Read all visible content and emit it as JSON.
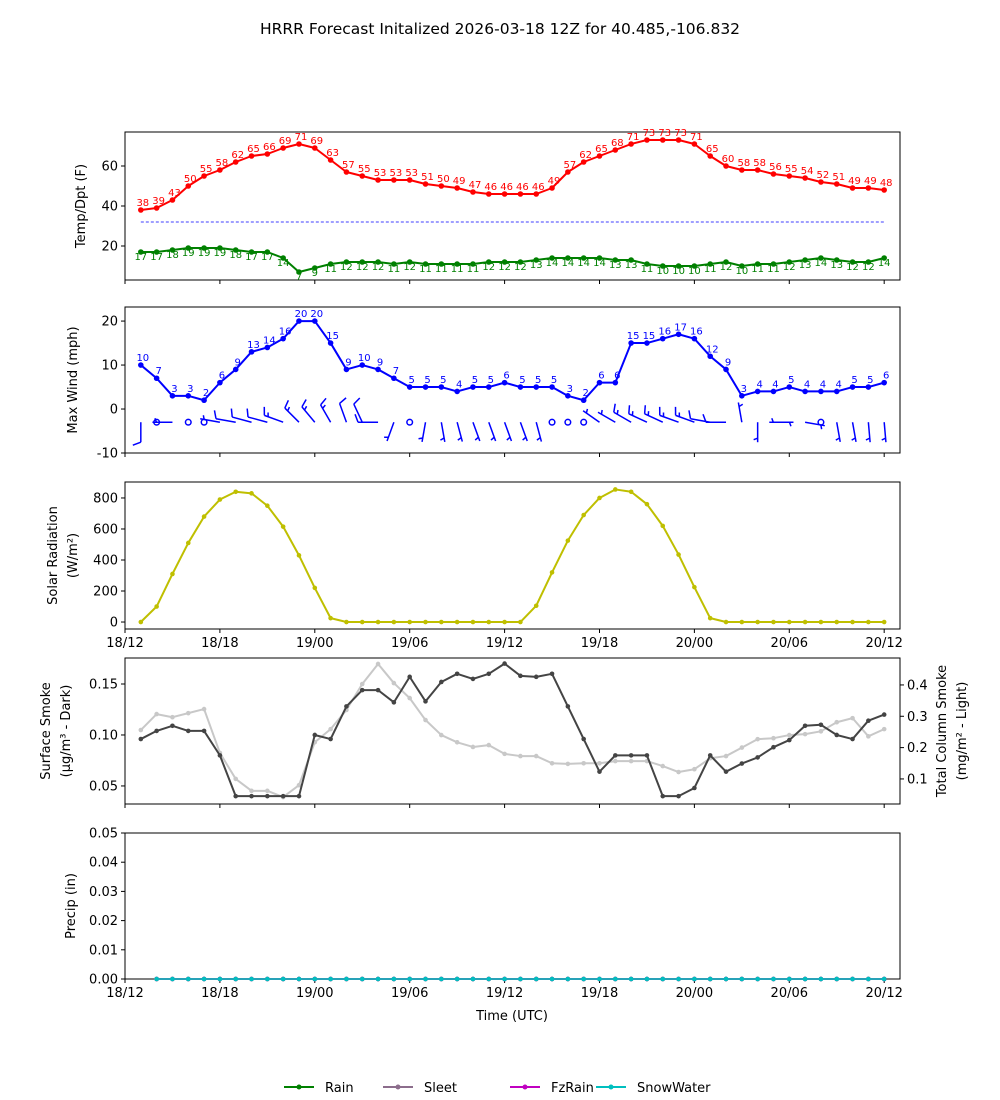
{
  "title": "HRRR Forecast Initalized 2026-03-18 12Z for 40.485,-106.832",
  "xlabel": "Time (UTC)",
  "x_ticks": {
    "hours": [
      0,
      6,
      12,
      18,
      24,
      30,
      36,
      42,
      48
    ],
    "labels": [
      "18/12",
      "18/18",
      "19/00",
      "19/06",
      "19/12",
      "19/18",
      "20/00",
      "20/06",
      "20/12"
    ]
  },
  "chart_data": [
    {
      "type": "line",
      "ylabel": "Temp/Dpt (F)",
      "ylim": [
        3,
        77
      ],
      "yticks": [
        20,
        40,
        60
      ],
      "hours": [
        1,
        2,
        3,
        4,
        5,
        6,
        7,
        8,
        9,
        10,
        11,
        12,
        13,
        14,
        15,
        16,
        17,
        18,
        19,
        20,
        21,
        22,
        23,
        24,
        25,
        26,
        27,
        28,
        29,
        30,
        31,
        32,
        33,
        34,
        35,
        36,
        37,
        38,
        39,
        40,
        41,
        42,
        43,
        44,
        45,
        46,
        47,
        48
      ],
      "series": [
        {
          "name": "Temperature",
          "color": "#ff0000",
          "values": [
            38,
            39,
            43,
            50,
            55,
            58,
            62,
            65,
            66,
            69,
            71,
            69,
            63,
            57,
            55,
            53,
            53,
            53,
            51,
            50,
            49,
            47,
            46,
            46,
            46,
            46,
            49,
            57,
            62,
            65,
            68,
            71,
            73,
            73,
            73,
            71,
            65,
            60,
            58,
            58,
            56,
            55,
            54,
            52,
            51,
            49,
            49,
            48
          ]
        },
        {
          "name": "Dewpoint",
          "color": "#008000",
          "values": [
            17,
            17,
            18,
            19,
            19,
            19,
            18,
            17,
            17,
            14,
            7,
            9,
            11,
            12,
            12,
            12,
            11,
            12,
            11,
            11,
            11,
            11,
            12,
            12,
            12,
            13,
            14,
            14,
            14,
            14,
            13,
            13,
            11,
            10,
            10,
            10,
            11,
            12,
            10,
            11,
            11,
            12,
            13,
            14,
            13,
            12,
            12,
            14
          ]
        }
      ],
      "reference_line": {
        "value": 32,
        "color": "#0000ff",
        "style": "dashed"
      }
    },
    {
      "type": "line",
      "ylabel": "Max Wind (mph)",
      "ylim": [
        -10,
        23.2
      ],
      "yticks": [
        -10,
        0,
        10,
        20
      ],
      "hours": [
        1,
        2,
        3,
        4,
        5,
        6,
        7,
        8,
        9,
        10,
        11,
        12,
        13,
        14,
        15,
        16,
        17,
        18,
        19,
        20,
        21,
        22,
        23,
        24,
        25,
        26,
        27,
        28,
        29,
        30,
        31,
        32,
        33,
        34,
        35,
        36,
        37,
        38,
        39,
        40,
        41,
        42,
        43,
        44,
        45,
        46,
        47,
        48
      ],
      "series": [
        {
          "name": "Max Wind",
          "color": "#0000ff",
          "values": [
            10,
            7,
            3,
            3,
            2,
            6,
            9,
            13,
            14,
            16,
            20,
            20,
            15,
            9,
            10,
            9,
            7,
            5,
            5,
            5,
            4,
            5,
            5,
            6,
            5,
            5,
            5,
            3,
            2,
            6,
            6,
            15,
            15,
            16,
            17,
            16,
            12,
            9,
            3,
            4,
            4,
            5,
            4,
            4,
            4,
            5,
            5,
            6
          ]
        }
      ],
      "barbs": {
        "level": -3,
        "color": "#0000ff",
        "dir_deg": [
          180,
          null,
          270,
          null,
          null,
          280,
          280,
          285,
          285,
          290,
          315,
          320,
          330,
          340,
          335,
          270,
          200,
          null,
          190,
          170,
          165,
          160,
          160,
          160,
          160,
          165,
          null,
          null,
          null,
          305,
          300,
          300,
          295,
          295,
          290,
          290,
          280,
          270,
          350,
          180,
          90,
          270,
          100,
          null,
          170,
          170,
          175,
          175
        ]
      }
    },
    {
      "type": "line",
      "ylabel": [
        "Solar Radiation",
        "(W/m²)"
      ],
      "ylim": [
        -45,
        903
      ],
      "yticks": [
        0,
        200,
        400,
        600,
        800
      ],
      "hours": [
        1,
        2,
        3,
        4,
        5,
        6,
        7,
        8,
        9,
        10,
        11,
        12,
        13,
        14,
        15,
        16,
        17,
        18,
        19,
        20,
        21,
        22,
        23,
        24,
        25,
        26,
        27,
        28,
        29,
        30,
        31,
        32,
        33,
        34,
        35,
        36,
        37,
        38,
        39,
        40,
        41,
        42,
        43,
        44,
        45,
        46,
        47,
        48
      ],
      "series": [
        {
          "name": "Solar Radiation",
          "color": "#bfbf00",
          "values": [
            0,
            100,
            310,
            510,
            680,
            790,
            840,
            830,
            750,
            615,
            430,
            220,
            25,
            0,
            0,
            0,
            0,
            0,
            0,
            0,
            0,
            0,
            0,
            0,
            0,
            105,
            320,
            525,
            690,
            800,
            855,
            840,
            760,
            620,
            435,
            225,
            25,
            0,
            0,
            0,
            0,
            0,
            0,
            0,
            0,
            0,
            0,
            0
          ]
        }
      ]
    },
    {
      "type": "line",
      "ylabel": [
        "Surface Smoke",
        "(µg/m³ - Dark)"
      ],
      "ylabel_right": [
        "Total Column Smoke",
        "(mg/m² - Light)"
      ],
      "ylim": [
        0.0323,
        0.1755
      ],
      "ylim_right": [
        0.02,
        0.486
      ],
      "yticks": [
        0.05,
        0.1,
        0.15
      ],
      "ytick_labels": [
        "0.05",
        "0.10",
        "0.15"
      ],
      "yticks_right": [
        0.1,
        0.2,
        0.3,
        0.4
      ],
      "ytick_labels_right": [
        "0.1",
        "0.2",
        "0.3",
        "0.4"
      ],
      "hours": [
        1,
        2,
        3,
        4,
        5,
        6,
        7,
        8,
        9,
        10,
        11,
        12,
        13,
        14,
        15,
        16,
        17,
        18,
        19,
        20,
        21,
        22,
        23,
        24,
        25,
        26,
        27,
        28,
        29,
        30,
        31,
        32,
        33,
        34,
        35,
        36,
        37,
        38,
        39,
        40,
        41,
        42,
        43,
        44,
        45,
        46,
        47,
        48
      ],
      "series": [
        {
          "name": "Total Column Smoke (Light)",
          "axis": "right",
          "color": "#c8c8c8",
          "values": [
            0.256,
            0.307,
            0.297,
            0.31,
            0.323,
            0.183,
            0.1,
            0.062,
            0.062,
            0.042,
            0.08,
            0.217,
            0.259,
            0.32,
            0.403,
            0.467,
            0.406,
            0.358,
            0.288,
            0.24,
            0.217,
            0.202,
            0.208,
            0.18,
            0.173,
            0.173,
            0.15,
            0.148,
            0.15,
            0.15,
            0.157,
            0.157,
            0.157,
            0.141,
            0.122,
            0.131,
            0.166,
            0.173,
            0.2,
            0.227,
            0.23,
            0.24,
            0.243,
            0.252,
            0.281,
            0.294,
            0.236,
            0.259
          ]
        },
        {
          "name": "Surface Smoke (Dark)",
          "axis": "left",
          "color": "#444444",
          "values": [
            0.096,
            0.104,
            0.109,
            0.104,
            0.104,
            0.08,
            0.04,
            0.04,
            0.04,
            0.04,
            0.04,
            0.1,
            0.096,
            0.128,
            0.144,
            0.144,
            0.132,
            0.157,
            0.133,
            0.152,
            0.16,
            0.155,
            0.16,
            0.17,
            0.158,
            0.157,
            0.16,
            0.128,
            0.096,
            0.064,
            0.08,
            0.08,
            0.08,
            0.04,
            0.04,
            0.048,
            0.08,
            0.064,
            0.072,
            0.078,
            0.088,
            0.095,
            0.109,
            0.11,
            0.1,
            0.096,
            0.114,
            0.12
          ]
        }
      ]
    },
    {
      "type": "line",
      "ylabel": "Precip (in)",
      "ylim": [
        0,
        0.05
      ],
      "yticks": [
        0,
        0.01,
        0.02,
        0.03,
        0.04,
        0.05
      ],
      "ytick_labels": [
        "0.00",
        "0.01",
        "0.02",
        "0.03",
        "0.04",
        "0.05"
      ],
      "hours": [
        2,
        3,
        4,
        5,
        6,
        7,
        8,
        9,
        10,
        11,
        12,
        13,
        14,
        15,
        16,
        17,
        18,
        19,
        20,
        21,
        22,
        23,
        24,
        25,
        26,
        27,
        28,
        29,
        30,
        31,
        32,
        33,
        34,
        35,
        36,
        37,
        38,
        39,
        40,
        41,
        42,
        43,
        44,
        45,
        46,
        47,
        48
      ],
      "series": [
        {
          "name": "Rain",
          "color": "#008000",
          "values": [
            0,
            0,
            0,
            0,
            0,
            0,
            0,
            0,
            0,
            0,
            0,
            0,
            0,
            0,
            0,
            0,
            0,
            0,
            0,
            0,
            0,
            0,
            0,
            0,
            0,
            0,
            0,
            0,
            0,
            0,
            0,
            0,
            0,
            0,
            0,
            0,
            0,
            0,
            0,
            0,
            0,
            0,
            0,
            0,
            0,
            0,
            0
          ]
        },
        {
          "name": "Sleet",
          "color": "#8c6d8c",
          "values": [
            0,
            0,
            0,
            0,
            0,
            0,
            0,
            0,
            0,
            0,
            0,
            0,
            0,
            0,
            0,
            0,
            0,
            0,
            0,
            0,
            0,
            0,
            0,
            0,
            0,
            0,
            0,
            0,
            0,
            0,
            0,
            0,
            0,
            0,
            0,
            0,
            0,
            0,
            0,
            0,
            0,
            0,
            0,
            0,
            0,
            0,
            0
          ]
        },
        {
          "name": "FzRain",
          "color": "#c000c0",
          "values": [
            0,
            0,
            0,
            0,
            0,
            0,
            0,
            0,
            0,
            0,
            0,
            0,
            0,
            0,
            0,
            0,
            0,
            0,
            0,
            0,
            0,
            0,
            0,
            0,
            0,
            0,
            0,
            0,
            0,
            0,
            0,
            0,
            0,
            0,
            0,
            0,
            0,
            0,
            0,
            0,
            0,
            0,
            0,
            0,
            0,
            0,
            0
          ]
        },
        {
          "name": "SnowWater",
          "color": "#00bfbf",
          "values": [
            0,
            0,
            0,
            0,
            0,
            0,
            0,
            0,
            0,
            0,
            0,
            0,
            0,
            0,
            0,
            0,
            0,
            0,
            0,
            0,
            0,
            0,
            0,
            0,
            0,
            0,
            0,
            0,
            0,
            0,
            0,
            0,
            0,
            0,
            0,
            0,
            0,
            0,
            0,
            0,
            0,
            0,
            0,
            0,
            0,
            0,
            0
          ]
        }
      ],
      "legend": {
        "placement": "bottom-center",
        "entries": [
          "Rain",
          "Sleet",
          "FzRain",
          "SnowWater"
        ]
      }
    }
  ]
}
